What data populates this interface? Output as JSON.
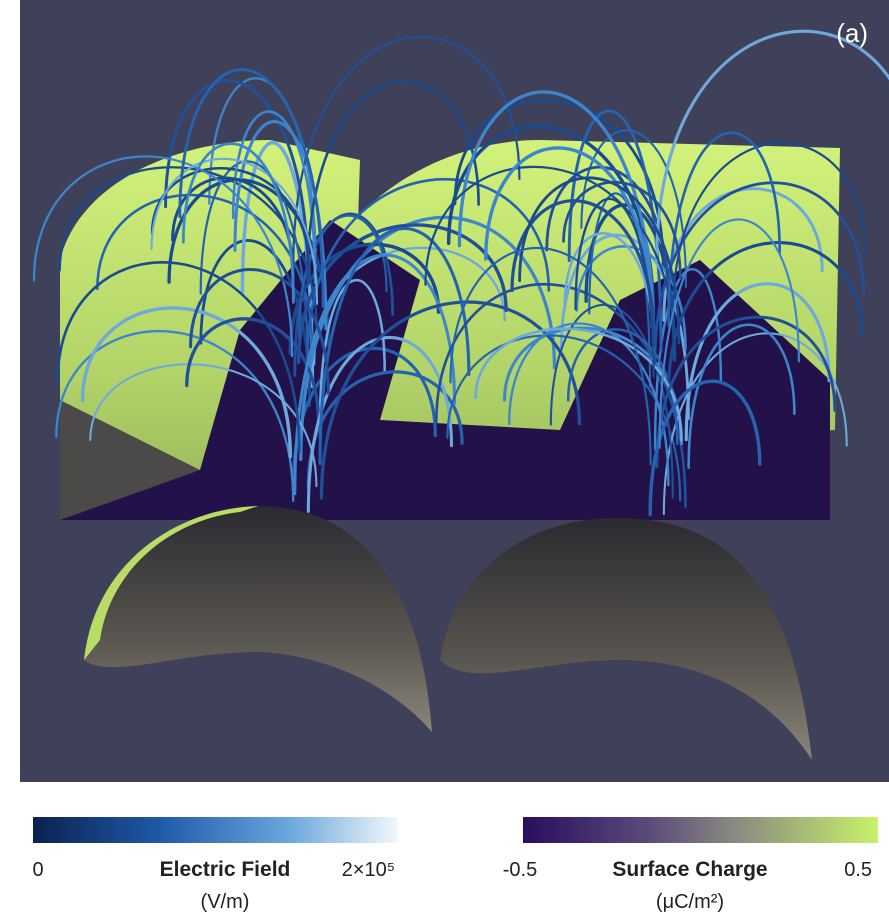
{
  "panel_label": "(a)",
  "colorbars": [
    {
      "title": "Electric Field",
      "unit": "(V/m)",
      "min_label": "0",
      "max_label": "2×10⁵"
    },
    {
      "title": "Surface Charge",
      "unit": "(μC/m²)",
      "min_label": "-0.5",
      "max_label": "0.5"
    }
  ]
}
